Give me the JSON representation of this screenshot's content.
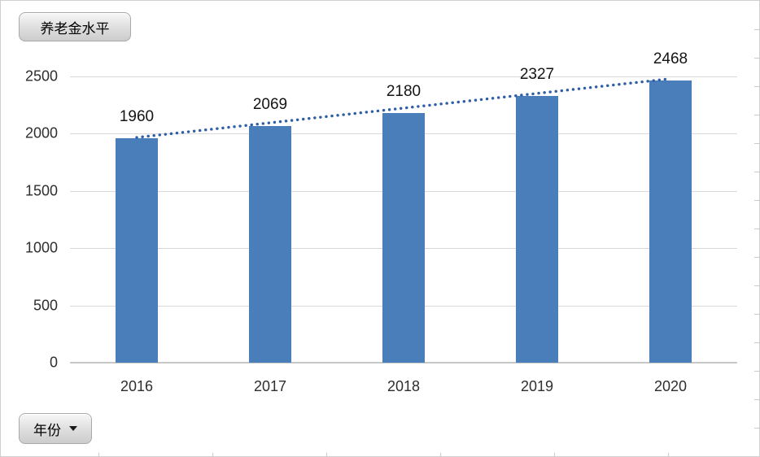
{
  "window": {
    "background": "#ffffff",
    "border_color": "#cfcfcf"
  },
  "field_buttons": {
    "value_button": {
      "label": "养老金水平"
    },
    "axis_button": {
      "label": "年份",
      "dropdown_icon": "triangle-down"
    }
  },
  "colors": {
    "bar": "#4a7ebb",
    "trendline": "#2e5ea5",
    "gridline": "#d9d9d9",
    "axis_line": "#c8c8c8",
    "data_label_text": "#141414",
    "tick_text": "#2e2e2e"
  },
  "chart_data": {
    "type": "bar",
    "title": "",
    "categories": [
      "2016",
      "2017",
      "2018",
      "2019",
      "2020"
    ],
    "series": [
      {
        "name": "养老金水平",
        "values": [
          1960,
          2069,
          2180,
          2327,
          2468
        ]
      }
    ],
    "data_labels": [
      "1960",
      "2069",
      "2180",
      "2327",
      "2468"
    ],
    "xlabel": "年份",
    "ylabel": "",
    "ylim": [
      0,
      2500
    ],
    "ytick_interval": 500,
    "yticks": [
      "0",
      "500",
      "1000",
      "1500",
      "2000",
      "2500"
    ],
    "grid": "horizontal",
    "legend": "none",
    "trendline": {
      "type": "linear",
      "style": "dotted",
      "start_value": 1967,
      "end_value": 2480
    }
  }
}
